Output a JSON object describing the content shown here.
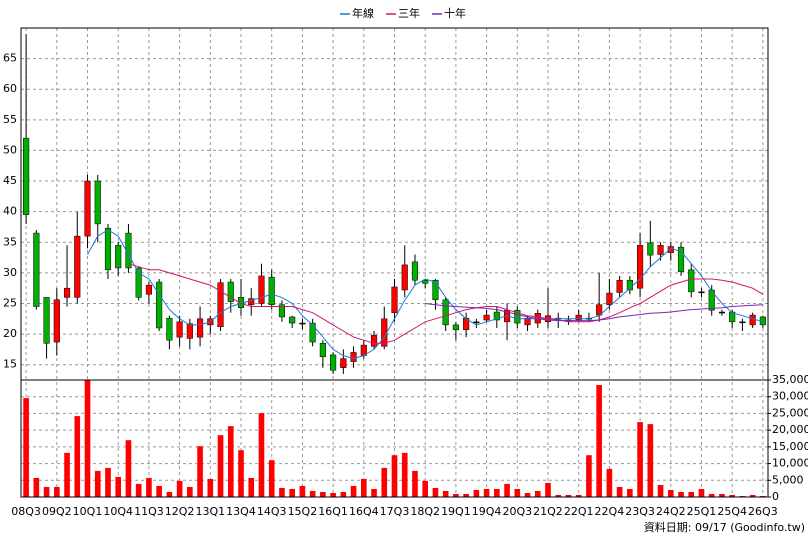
{
  "chart_data": {
    "type": "candlestick",
    "categories": [
      "08Q3",
      null,
      null,
      "09Q2",
      null,
      null,
      "10Q1",
      null,
      null,
      "10Q4",
      null,
      null,
      "11Q3",
      null,
      null,
      "12Q2",
      null,
      null,
      "13Q1",
      null,
      null,
      "13Q4",
      null,
      null,
      "14Q3",
      null,
      null,
      "15Q2",
      null,
      null,
      "16Q1",
      null,
      null,
      "16Q4",
      null,
      null,
      "17Q3",
      null,
      null,
      "18Q2",
      null,
      null,
      "19Q1",
      null,
      null,
      "19Q4",
      null,
      null,
      "20Q3",
      null,
      null,
      "21Q2",
      null,
      null,
      "22Q1",
      null,
      null,
      "22Q4",
      null,
      null,
      "23Q3",
      null,
      null,
      "24Q2",
      null,
      null,
      "25Q1",
      null,
      null,
      "25Q4",
      null,
      null,
      "26Q3"
    ],
    "open": [
      52,
      36.5,
      26,
      18.7,
      26,
      26,
      36,
      45,
      37.3,
      34.5,
      36.5,
      30.8,
      26.5,
      28.5,
      22.6,
      19.5,
      19.3,
      19.5,
      21.5,
      21.2,
      28.5,
      26,
      24.8,
      25,
      29.3,
      24.8,
      22.8,
      21.8,
      21.8,
      18.5,
      16.6,
      14.5,
      15.5,
      16.5,
      18,
      18,
      23.5,
      27.2,
      31.8,
      28.8,
      28.8,
      25.6,
      21.5,
      20.7,
      22,
      22.3,
      23.6,
      22,
      23.9,
      21.5,
      21.8,
      22,
      22.6,
      22.3,
      22.3,
      22.6,
      23.1,
      24.8,
      26.8,
      28.8,
      27.5,
      34.9,
      33,
      33.3,
      34.2,
      30.5,
      26.9,
      27.2,
      23.6,
      23.6,
      22,
      21.5,
      22.8
    ],
    "high": [
      69,
      37,
      26,
      27.5,
      34.5,
      40,
      46,
      46,
      38,
      35,
      38,
      31,
      28.5,
      29,
      23,
      23,
      22.5,
      24.5,
      23,
      29,
      29,
      29,
      27.5,
      31.5,
      30.5,
      25.5,
      23,
      22.5,
      22.5,
      19,
      17,
      17.5,
      18,
      19,
      20.5,
      24.5,
      29,
      34.5,
      33,
      29,
      29,
      26,
      22,
      23.5,
      22.5,
      24,
      24.5,
      25,
      24.5,
      23,
      24,
      27.5,
      23.5,
      23,
      24,
      23.5,
      30,
      29,
      29.5,
      29.5,
      36.5,
      38.5,
      35,
      35,
      35,
      31.5,
      27.5,
      28,
      24,
      24,
      22.5,
      23.5,
      23
    ],
    "low": [
      38,
      24,
      16,
      16.5,
      24.5,
      25,
      34,
      35,
      29,
      29.5,
      30,
      25.5,
      25,
      20.5,
      17.5,
      18,
      17.5,
      18,
      20,
      20.5,
      23.5,
      23,
      23,
      24.5,
      24,
      22,
      21,
      20.8,
      18,
      14.5,
      13.5,
      13.5,
      14.5,
      16,
      17.5,
      17.5,
      22,
      26,
      28,
      27.5,
      24,
      20.5,
      19,
      19.5,
      21,
      22,
      21,
      19,
      21,
      20.5,
      21,
      21,
      21,
      21.5,
      22,
      22,
      22,
      24,
      26,
      26.5,
      26,
      31,
      32,
      32,
      29.5,
      26,
      26,
      23,
      23,
      21,
      20.5,
      21,
      21
    ],
    "close": [
      39.5,
      24.5,
      18.5,
      25.6,
      27.5,
      36,
      45,
      38,
      30.5,
      30.8,
      30.8,
      26,
      28,
      21,
      19,
      22,
      21.7,
      22.5,
      22.5,
      28.4,
      25.3,
      24.3,
      25.8,
      29.5,
      24.8,
      22.8,
      21.8,
      21.8,
      18.7,
      16.3,
      14.1,
      16,
      17,
      18.2,
      19.8,
      22.5,
      27.7,
      31.3,
      28.8,
      28.3,
      25.6,
      21.5,
      20.7,
      22.6,
      22,
      23.1,
      22.3,
      23.9,
      21.8,
      22.6,
      23.4,
      23,
      22.6,
      22.3,
      23.1,
      22.6,
      24.8,
      26.7,
      28.8,
      27.2,
      34.5,
      32.9,
      34.5,
      34.3,
      30.2,
      26.9,
      26.9,
      23.9,
      23.6,
      22,
      22,
      23.1,
      21.5
    ],
    "volume": [
      29600,
      5700,
      3000,
      3000,
      13200,
      24200,
      35000,
      7800,
      8700,
      6000,
      17000,
      3900,
      5700,
      3300,
      1500,
      4800,
      3000,
      15200,
      5400,
      18500,
      21200,
      14000,
      5700,
      25100,
      11000,
      2700,
      2400,
      3300,
      1800,
      1500,
      1200,
      1500,
      3300,
      5400,
      2400,
      8700,
      12500,
      13200,
      7800,
      4800,
      2700,
      1800,
      900,
      900,
      2100,
      2400,
      2400,
      3900,
      2400,
      1200,
      1800,
      4200,
      600,
      600,
      600,
      12500,
      33500,
      8400,
      3000,
      2400,
      22400,
      21800,
      3600,
      2100,
      1500,
      1500,
      2400,
      900,
      900,
      600,
      300,
      600,
      300
    ],
    "up_color": "#ff0000",
    "down_color": "#00b000",
    "flat_color": "#000000",
    "volume_color": "#ff0000",
    "series": [
      {
        "name": "年線",
        "color": "#1e78d2",
        "values": [
          null,
          null,
          null,
          null,
          null,
          null,
          33,
          36,
          37,
          36,
          33,
          30,
          29,
          26.5,
          24,
          22.5,
          21.5,
          21.5,
          22,
          23.5,
          24.5,
          25,
          25.5,
          26,
          26.5,
          26,
          25,
          23,
          21.5,
          19.5,
          17.5,
          16.5,
          16,
          16.5,
          17.5,
          19.5,
          22.5,
          25.5,
          28,
          29,
          28.5,
          26,
          24,
          22.5,
          21.5,
          22,
          22.5,
          23,
          22.5,
          22.5,
          22.5,
          22.5,
          22.5,
          22.5,
          22.5,
          22.5,
          23,
          24.5,
          26,
          27.5,
          29,
          31,
          32.5,
          34,
          33.5,
          31.5,
          29.5,
          27,
          25,
          23.5,
          23,
          22.5,
          22
        ]
      },
      {
        "name": "三年",
        "color": "#d2146e",
        "values": [
          null,
          null,
          null,
          null,
          null,
          null,
          null,
          null,
          null,
          null,
          31.5,
          31,
          30.5,
          30.5,
          30,
          29.5,
          29,
          28.5,
          28,
          27,
          26,
          25,
          24.5,
          24.5,
          24.5,
          24.5,
          24.5,
          24,
          23.5,
          22.5,
          21.5,
          20.5,
          19.5,
          19,
          18.5,
          18.5,
          19,
          20,
          21,
          22,
          22.5,
          23,
          23.5,
          24,
          24.3,
          24.5,
          24.5,
          24,
          23.5,
          23,
          22.8,
          22.5,
          22.3,
          22,
          22,
          22,
          22.3,
          22.8,
          23.5,
          24.3,
          25,
          26,
          27,
          28,
          28.5,
          29,
          29,
          29,
          28.8,
          28.5,
          28,
          27.5,
          26.5
        ]
      },
      {
        "name": "十年",
        "color": "#7828b4",
        "values": [
          null,
          null,
          null,
          null,
          null,
          null,
          null,
          null,
          null,
          null,
          null,
          null,
          null,
          null,
          null,
          null,
          null,
          null,
          null,
          null,
          null,
          null,
          null,
          null,
          null,
          null,
          null,
          null,
          null,
          null,
          null,
          null,
          null,
          null,
          null,
          null,
          null,
          null,
          null,
          25,
          24.8,
          24.6,
          24.5,
          24.4,
          24.3,
          24.2,
          24,
          23.6,
          23.2,
          22.8,
          22.5,
          22.3,
          22.2,
          22.2,
          22.2,
          22.2,
          22.3,
          22.5,
          22.8,
          23,
          23.2,
          23.4,
          23.5,
          23.6,
          23.8,
          24,
          24.1,
          24.2,
          24.3,
          24.5,
          24.6,
          24.7,
          24.8
        ]
      }
    ],
    "ylim": [
      12.5,
      70
    ],
    "yticks": [
      15,
      20,
      25,
      30,
      35,
      40,
      45,
      50,
      55,
      60,
      65
    ],
    "y2lim": [
      0,
      35000
    ],
    "y2ticks": [
      0,
      {
        "value": 5000,
        "label": "5,000"
      },
      {
        "value": 10000,
        "label": "10,000"
      },
      {
        "value": 15000,
        "label": "15,000"
      },
      {
        "value": 20000,
        "label": "20,000"
      },
      {
        "value": 25000,
        "label": "25,000"
      },
      {
        "value": 30000,
        "label": "30,000"
      },
      {
        "value": 35000,
        "label": "35,000"
      }
    ],
    "grid": true,
    "legend": "top",
    "footnote": "資料日期: 09/17  (Goodinfo.tw)"
  }
}
